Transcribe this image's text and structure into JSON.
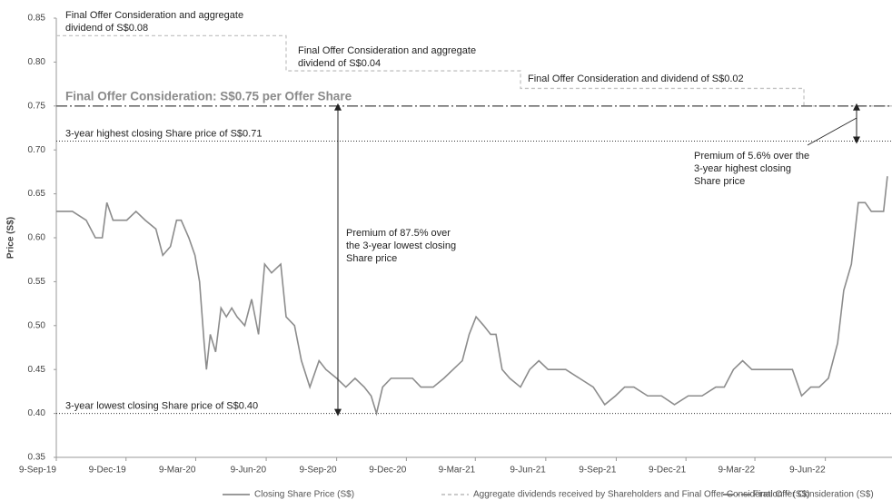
{
  "chart_data": {
    "type": "line",
    "ylabel": "Price (S$)",
    "xlim": [
      "9-Sep-19",
      "4-Sep-22"
    ],
    "xticks": [
      "9-Sep-19",
      "9-Dec-19",
      "9-Mar-20",
      "9-Jun-20",
      "9-Sep-20",
      "9-Dec-20",
      "9-Mar-21",
      "9-Jun-21",
      "9-Sep-21",
      "9-Dec-21",
      "9-Mar-22",
      "9-Jun-22"
    ],
    "ylim": [
      0.35,
      0.85
    ],
    "yticks": [
      {
        "value": 0.35,
        "label": "0.35"
      },
      {
        "value": 0.4,
        "label": "0.40"
      },
      {
        "value": 0.45,
        "label": "0.45"
      },
      {
        "value": 0.5,
        "label": "0.50"
      },
      {
        "value": 0.55,
        "label": "0.55"
      },
      {
        "value": 0.6,
        "label": "0.60"
      },
      {
        "value": 0.65,
        "label": "0.65"
      },
      {
        "value": 0.7,
        "label": "0.70"
      },
      {
        "value": 0.75,
        "label": "0.75"
      },
      {
        "value": 0.8,
        "label": "0.80"
      },
      {
        "value": 0.85,
        "label": "0.85"
      }
    ],
    "series": [
      {
        "name": "Closing Share Price (S$)",
        "color": "#8c8c8c",
        "style": "solid",
        "x": [
          "9-Sep-19",
          "30-Sep-19",
          "18-Oct-19",
          "30-Oct-19",
          "8-Nov-19",
          "14-Nov-19",
          "22-Nov-19",
          "10-Dec-19",
          "22-Dec-19",
          "3-Jan-20",
          "17-Jan-20",
          "26-Jan-20",
          "5-Feb-20",
          "13-Feb-20",
          "19-Feb-20",
          "29-Feb-20",
          "8-Mar-20",
          "14-Mar-20",
          "20-Mar-20",
          "23-Mar-20",
          "28-Mar-20",
          "4-Apr-20",
          "11-Apr-20",
          "18-Apr-20",
          "25-Apr-20",
          "2-May-20",
          "12-May-20",
          "21-May-20",
          "30-May-20",
          "7-Jun-20",
          "16-Jun-20",
          "28-Jun-20",
          "5-Jul-20",
          "16-Jul-20",
          "25-Jul-20",
          "5-Aug-20",
          "17-Aug-20",
          "26-Aug-20",
          "9-Sep-20",
          "21-Sep-20",
          "3-Oct-20",
          "15-Oct-20",
          "24-Oct-20",
          "31-Oct-20",
          "8-Nov-20",
          "19-Nov-20",
          "1-Dec-20",
          "17-Dec-20",
          "28-Dec-20",
          "13-Jan-21",
          "27-Jan-21",
          "8-Feb-21",
          "20-Feb-21",
          "1-Mar-21",
          "10-Mar-21",
          "20-Mar-21",
          "29-Mar-21",
          "5-Apr-21",
          "13-Apr-21",
          "23-Apr-21",
          "7-May-21",
          "19-May-21",
          "31-May-21",
          "12-Jun-21",
          "24-Jun-21",
          "5-Jul-21",
          "23-Jul-21",
          "10-Aug-21",
          "25-Aug-21",
          "8-Sep-21",
          "20-Sep-21",
          "2-Oct-21",
          "20-Oct-21",
          "7-Nov-21",
          "24-Nov-21",
          "12-Dec-21",
          "30-Dec-21",
          "17-Jan-22",
          "28-Jan-22",
          "9-Feb-22",
          "21-Feb-22",
          "5-Mar-22",
          "23-Mar-22",
          "9-Apr-22",
          "27-Apr-22",
          "9-May-22",
          "21-May-22",
          "1-Jun-22",
          "13-Jun-22",
          "25-Jun-22",
          "3-Jul-22",
          "13-Jul-22",
          "22-Jul-22",
          "31-Jul-22",
          "8-Aug-22",
          "17-Aug-22",
          "24-Aug-22",
          "29-Aug-22"
        ],
        "values": [
          0.63,
          0.63,
          0.62,
          0.6,
          0.6,
          0.64,
          0.62,
          0.62,
          0.63,
          0.62,
          0.61,
          0.58,
          0.59,
          0.62,
          0.62,
          0.6,
          0.58,
          0.55,
          0.48,
          0.45,
          0.49,
          0.47,
          0.52,
          0.51,
          0.52,
          0.51,
          0.5,
          0.53,
          0.49,
          0.57,
          0.56,
          0.57,
          0.51,
          0.5,
          0.46,
          0.43,
          0.46,
          0.45,
          0.44,
          0.43,
          0.44,
          0.43,
          0.42,
          0.4,
          0.43,
          0.44,
          0.44,
          0.44,
          0.43,
          0.43,
          0.44,
          0.45,
          0.46,
          0.49,
          0.51,
          0.5,
          0.49,
          0.49,
          0.45,
          0.44,
          0.43,
          0.45,
          0.46,
          0.45,
          0.45,
          0.45,
          0.44,
          0.43,
          0.41,
          0.42,
          0.43,
          0.43,
          0.42,
          0.42,
          0.41,
          0.42,
          0.42,
          0.43,
          0.43,
          0.45,
          0.46,
          0.45,
          0.45,
          0.45,
          0.45,
          0.42,
          0.43,
          0.43,
          0.44,
          0.48,
          0.54,
          0.57,
          0.64,
          0.64,
          0.63,
          0.63,
          0.63,
          0.67
        ]
      },
      {
        "name": "Aggregate dividends received by Shareholders and Final Offer Consideration⁽¹⁾ (S$)",
        "color": "#c4c4c4",
        "style": "step",
        "x": [
          "9-Sep-19",
          "5-Jul-20",
          "7-May-21",
          "12-May-22",
          "4-Sep-22"
        ],
        "values": [
          0.83,
          0.79,
          0.77,
          0.75,
          0.75
        ]
      },
      {
        "name": "Final Offer Consideration (S$)",
        "color": "#6e6e6e",
        "style": "hline",
        "value": 0.75
      }
    ],
    "hlines": [
      {
        "value": 0.71,
        "label": "3-year highest closing Share price of S$0.71"
      },
      {
        "value": 0.4,
        "label": "3-year lowest closing Share price of S$0.40"
      }
    ],
    "offer_label": "Final Offer Consideration: S$0.75 per Offer Share",
    "annotations": [
      {
        "lines": [
          "Final Offer Consideration and aggregate",
          "dividend of S$0.08"
        ]
      },
      {
        "lines": [
          "Final Offer Consideration and aggregate",
          "dividend of S$0.04"
        ]
      },
      {
        "lines": [
          "Final Offer Consideration and dividend of S$0.02"
        ]
      },
      {
        "lines": [
          "Premium of 87.5% over",
          "the 3-year lowest closing",
          "Share price"
        ]
      },
      {
        "lines": [
          "Premium of 5.6% over the",
          "3-year highest closing",
          "Share price"
        ]
      }
    ]
  }
}
